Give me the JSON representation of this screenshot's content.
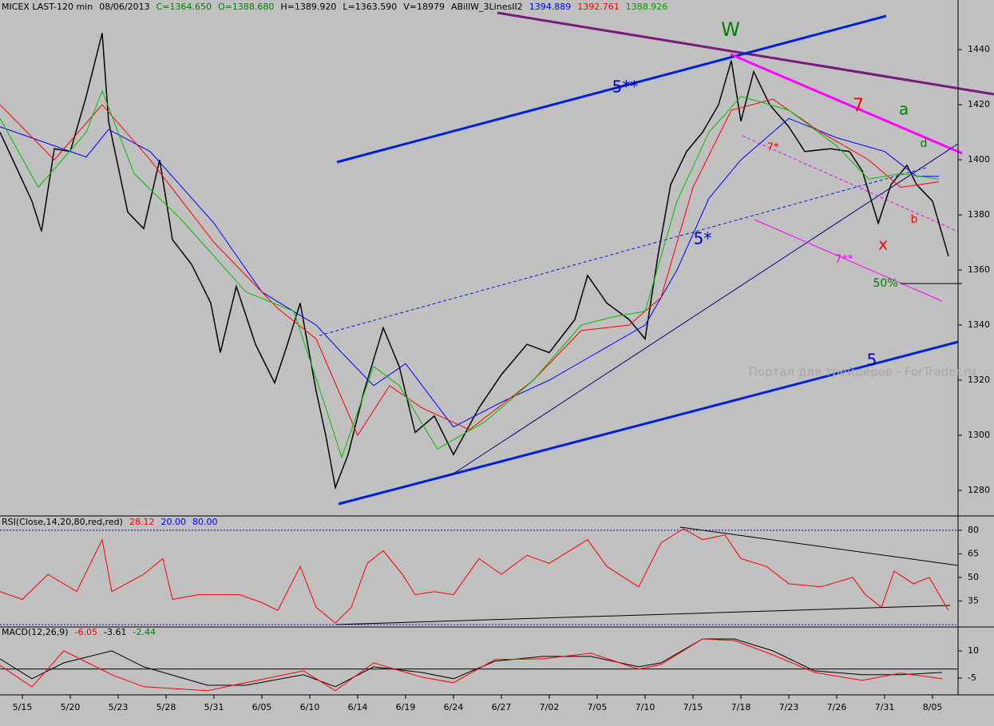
{
  "chart_data": [
    {
      "type": "line",
      "header": [
        {
          "text": "MICEX LAST-120 min",
          "color": "#000000"
        },
        {
          "text": "08/06/2013",
          "color": "#000000"
        },
        {
          "text": "C=1364.650",
          "color": "#008000"
        },
        {
          "text": "O=1388.680",
          "color": "#008000"
        },
        {
          "text": "H=1389.920",
          "color": "#000000"
        },
        {
          "text": "L=1363.590",
          "color": "#000000"
        },
        {
          "text": "V=18979",
          "color": "#000000"
        },
        {
          "text": "ABillW_3LinesII2",
          "color": "#000000"
        },
        {
          "text": "1394.889",
          "color": "#0000ff"
        },
        {
          "text": "1392.761",
          "color": "#ff0000"
        },
        {
          "text": "1388.926",
          "color": "#00a000"
        }
      ],
      "xlim": [
        -7,
        293
      ],
      "xticks": [
        {
          "value": 0,
          "label": "5/15"
        },
        {
          "value": 15,
          "label": "5/20"
        },
        {
          "value": 30,
          "label": "5/23"
        },
        {
          "value": 45,
          "label": "5/28"
        },
        {
          "value": 60,
          "label": "5/31"
        },
        {
          "value": 75,
          "label": "6/05"
        },
        {
          "value": 90,
          "label": "6/10"
        },
        {
          "value": 105,
          "label": "6/14"
        },
        {
          "value": 120,
          "label": "6/19"
        },
        {
          "value": 135,
          "label": "6/24"
        },
        {
          "value": 150,
          "label": "6/27"
        },
        {
          "value": 165,
          "label": "7/02"
        },
        {
          "value": 180,
          "label": "7/05"
        },
        {
          "value": 195,
          "label": "7/10"
        },
        {
          "value": 210,
          "label": "7/15"
        },
        {
          "value": 225,
          "label": "7/18"
        },
        {
          "value": 240,
          "label": "7/23"
        },
        {
          "value": 255,
          "label": "7/26"
        },
        {
          "value": 270,
          "label": "7/31"
        },
        {
          "value": 285,
          "label": "8/05"
        }
      ],
      "ylim": [
        1271,
        1458
      ],
      "yticks": [
        1280,
        1300,
        1320,
        1340,
        1360,
        1380,
        1400,
        1420,
        1440
      ],
      "series": [
        {
          "name": "close",
          "color": "#000000",
          "x": [
            -7,
            3,
            6,
            10,
            15,
            20,
            25,
            27,
            33,
            38,
            43,
            47,
            53,
            59,
            62,
            67,
            73,
            79,
            83,
            87,
            92,
            95,
            98,
            102,
            107,
            113,
            118,
            123,
            129,
            135,
            143,
            150,
            158,
            165,
            173,
            177,
            183,
            190,
            195,
            199,
            203,
            208,
            213,
            218,
            222,
            225,
            229,
            234,
            240,
            245,
            253,
            259,
            263,
            268,
            272,
            277,
            280,
            285,
            290
          ],
          "values": [
            1410,
            1385,
            1374,
            1404,
            1403,
            1423,
            1446,
            1414,
            1381,
            1375,
            1400,
            1371,
            1362,
            1348,
            1330,
            1354,
            1333,
            1319,
            1333,
            1348,
            1316,
            1300,
            1281,
            1293,
            1316,
            1339,
            1325,
            1301,
            1307,
            1293,
            1310,
            1322,
            1333,
            1330,
            1342,
            1358,
            1348,
            1342,
            1335,
            1365,
            1391,
            1403,
            1410,
            1420,
            1436,
            1414,
            1432,
            1420,
            1412,
            1403,
            1404,
            1403,
            1396,
            1377,
            1391,
            1398,
            1391,
            1385,
            1365
          ]
        },
        {
          "name": "slow",
          "color": "#0000ff",
          "x": [
            -7,
            20,
            27,
            40,
            60,
            75,
            92,
            100,
            110,
            120,
            135,
            150,
            165,
            180,
            195,
            205,
            215,
            225,
            240,
            255,
            270,
            280,
            287
          ],
          "values": [
            1412,
            1401,
            1411,
            1403,
            1377,
            1352,
            1340,
            1330,
            1318,
            1326,
            1303,
            1312,
            1320,
            1330,
            1340,
            1360,
            1386,
            1400,
            1415,
            1408,
            1403,
            1394,
            1394
          ]
        },
        {
          "name": "medium",
          "color": "#ff0000",
          "x": [
            -7,
            10,
            25,
            40,
            60,
            80,
            92,
            105,
            115,
            125,
            140,
            160,
            175,
            190,
            200,
            210,
            222,
            235,
            250,
            265,
            275,
            287
          ],
          "values": [
            1420,
            1400,
            1420,
            1400,
            1370,
            1346,
            1335,
            1300,
            1318,
            1310,
            1302,
            1320,
            1338,
            1340,
            1350,
            1390,
            1418,
            1422,
            1410,
            1400,
            1390,
            1392
          ]
        },
        {
          "name": "fast",
          "color": "#00c000",
          "x": [
            -7,
            5,
            20,
            25,
            35,
            50,
            70,
            85,
            95,
            100,
            110,
            118,
            130,
            145,
            160,
            175,
            185,
            195,
            205,
            215,
            225,
            240,
            255,
            265,
            275,
            287
          ],
          "values": [
            1415,
            1390,
            1410,
            1425,
            1395,
            1378,
            1352,
            1345,
            1310,
            1292,
            1325,
            1318,
            1295,
            1305,
            1320,
            1340,
            1343,
            1345,
            1385,
            1410,
            1423,
            1418,
            1405,
            1393,
            1395,
            1393
          ]
        }
      ],
      "annotations": [
        {
          "text": "W",
          "color": "#008000"
        },
        {
          "text": "5**",
          "color": "#0000c0"
        },
        {
          "text": "5*",
          "color": "#0000c0"
        },
        {
          "text": "5",
          "color": "#0000c0"
        },
        {
          "text": "7",
          "color": "#ff0000"
        },
        {
          "text": "7*",
          "color": "#ff0000"
        },
        {
          "text": "7**",
          "color": "#ff00ff"
        },
        {
          "text": "a",
          "color": "#008000"
        },
        {
          "text": "b",
          "color": "#ff0000"
        },
        {
          "text": "d",
          "color": "#008000"
        },
        {
          "text": "x",
          "color": "#ff0000"
        },
        {
          "text": "50%",
          "color": "#008000"
        },
        {
          "text": "Портал для трейдеров - ForTrader.ru",
          "color": "#a8a8a8"
        }
      ]
    },
    {
      "type": "line",
      "header": [
        {
          "text": "RSI(Close,14,20,80,red,red)",
          "color": "#000000"
        },
        {
          "text": "28.12",
          "color": "#ff0000"
        },
        {
          "text": "20.00",
          "color": "#0000ff"
        },
        {
          "text": "80.00",
          "color": "#0000ff"
        }
      ],
      "ylim": [
        18.5,
        88.6
      ],
      "yticks": [
        80,
        65,
        50,
        35
      ],
      "levels": [
        20,
        80
      ],
      "series": [
        {
          "name": "RSI",
          "color": "#ff0000",
          "x": [
            -7,
            0,
            8,
            17,
            25,
            28,
            38,
            44,
            47,
            55,
            68,
            75,
            80,
            87,
            92,
            98,
            103,
            108,
            113,
            119,
            123,
            129,
            135,
            143,
            150,
            158,
            165,
            177,
            183,
            193,
            200,
            207,
            213,
            220,
            225,
            233,
            240,
            250,
            260,
            264,
            269,
            273,
            279,
            284,
            290
          ],
          "values": [
            41,
            36,
            52,
            41,
            74,
            41,
            52,
            62,
            36,
            39,
            39,
            34,
            29,
            57,
            31,
            21,
            31,
            59,
            67,
            52,
            39,
            41,
            39,
            62,
            52,
            64,
            59,
            74,
            57,
            44,
            72,
            81,
            74,
            77,
            62,
            57,
            46,
            44,
            50,
            39,
            31,
            54,
            46,
            50,
            29
          ]
        }
      ]
    },
    {
      "type": "line",
      "header": [
        {
          "text": "MACD(12,26,9)",
          "color": "#000000"
        },
        {
          "text": "-6.05",
          "color": "#ff0000"
        },
        {
          "text": "-3.61",
          "color": "#000000"
        },
        {
          "text": "-2.44",
          "color": "#008000"
        }
      ],
      "ylim": [
        -14.3,
        23.2
      ],
      "yticks": [
        10,
        -5
      ],
      "series": [
        {
          "name": "MACD",
          "color": "#000000",
          "x": [
            -7,
            3,
            13,
            28,
            38,
            58,
            70,
            88,
            98,
            110,
            125,
            135,
            148,
            163,
            178,
            193,
            200,
            213,
            223,
            235,
            248,
            263,
            275,
            288
          ],
          "values": [
            5.6,
            -5.4,
            3.4,
            10,
            1.2,
            -9,
            -9,
            -3.2,
            -9.8,
            1.2,
            -1.9,
            -5.4,
            4.3,
            6.9,
            6.9,
            1.2,
            3.4,
            16.6,
            16.6,
            10,
            -1,
            -3.2,
            -3.2,
            -1.9
          ]
        },
        {
          "name": "signal",
          "color": "#ff0000",
          "x": [
            -7,
            3,
            13,
            28,
            38,
            58,
            70,
            88,
            98,
            110,
            125,
            135,
            148,
            163,
            178,
            193,
            200,
            213,
            223,
            235,
            248,
            263,
            275,
            288
          ],
          "values": [
            2,
            -9.9,
            10,
            -3.2,
            -9.8,
            -12,
            -7.6,
            -1,
            -12,
            3.4,
            -4.5,
            -7.6,
            5.2,
            5.6,
            8.7,
            -0.1,
            2.5,
            16.6,
            15.7,
            7.8,
            -1.9,
            -6.3,
            -2.3,
            -5.4
          ]
        }
      ]
    }
  ]
}
